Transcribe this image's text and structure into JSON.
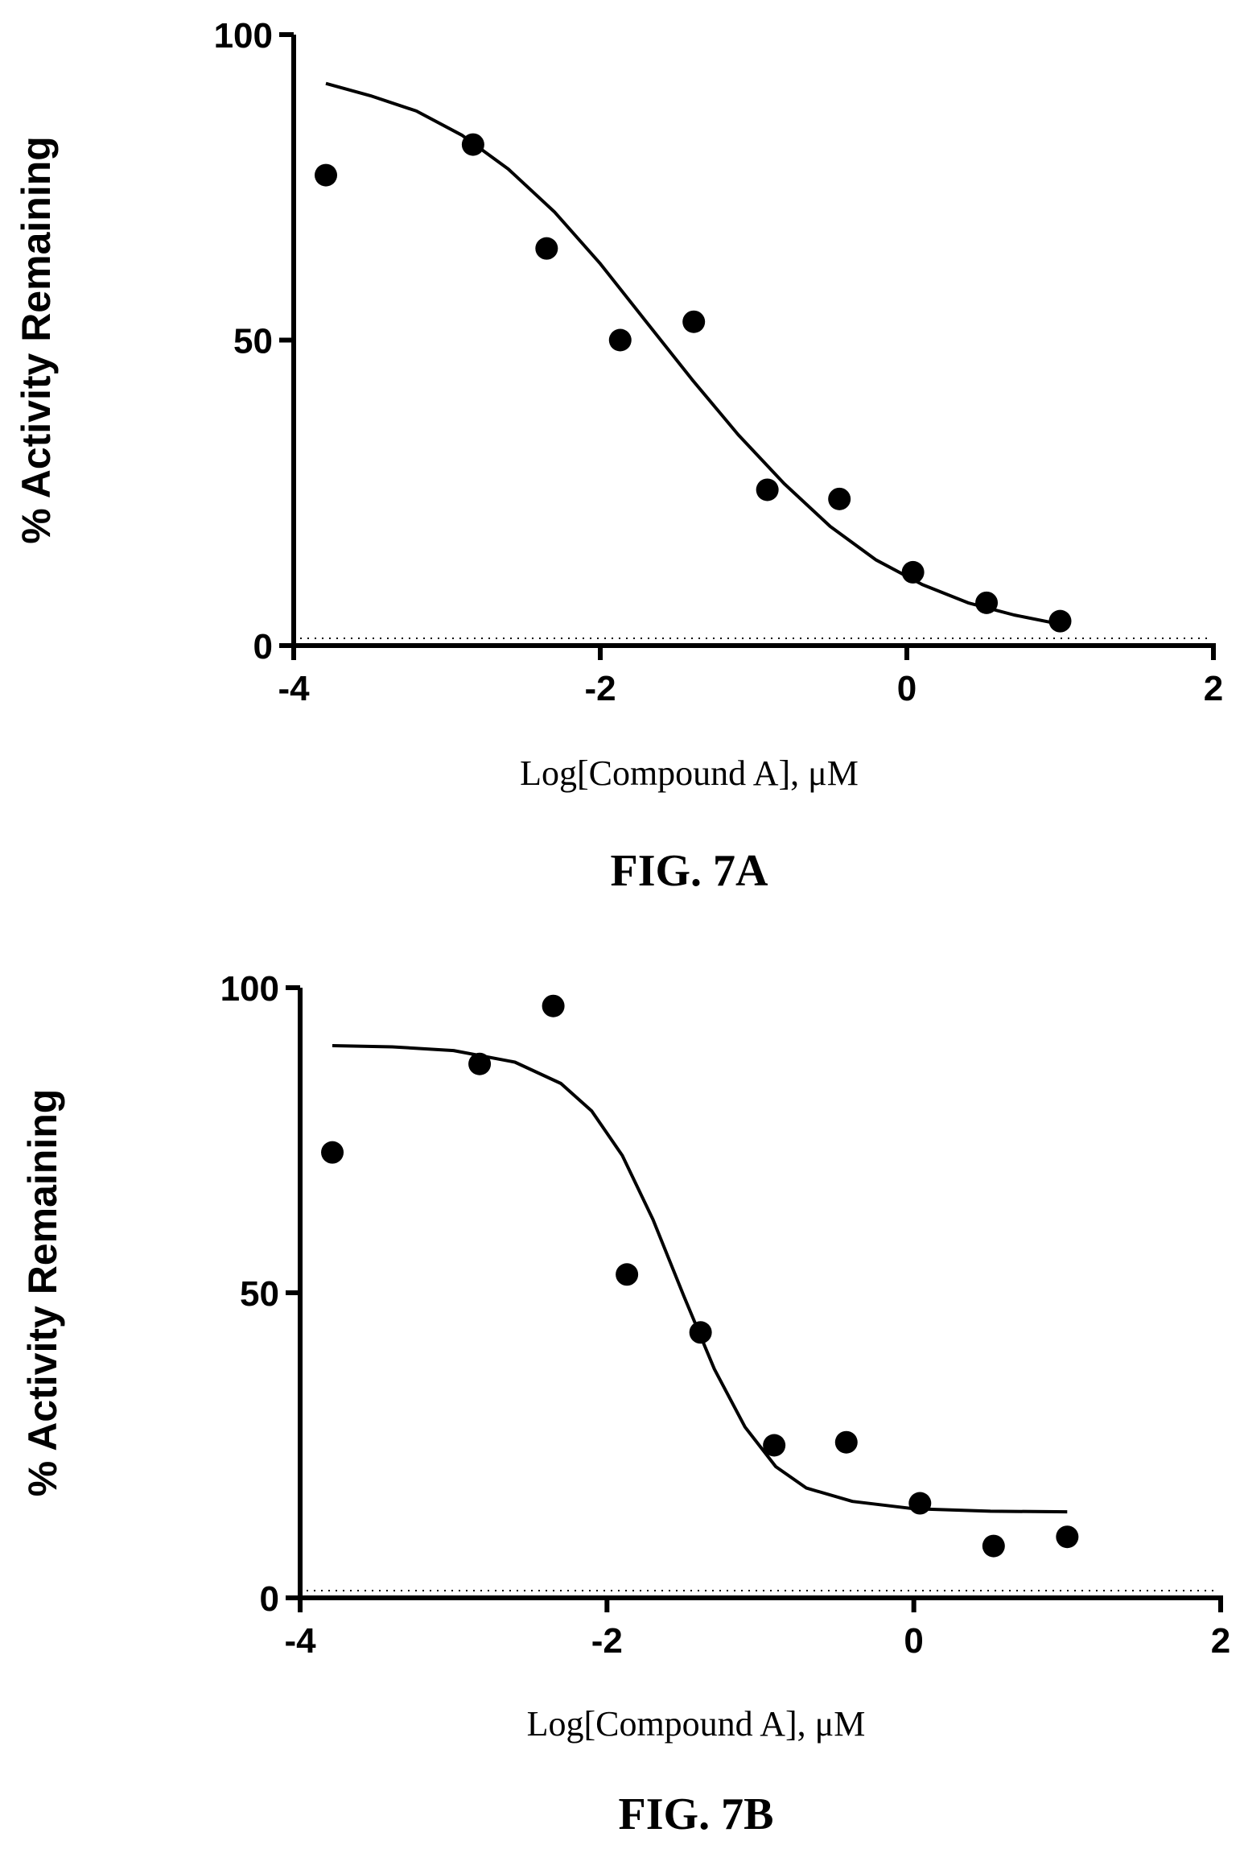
{
  "chart_data": [
    {
      "type": "scatter",
      "caption": "FIG. 7A",
      "xlabel": "Log[Compound A], μM",
      "ylabel": "% Activity Remaining",
      "xlim": [
        -4,
        2
      ],
      "ylim": [
        0,
        100
      ],
      "x_ticks": [
        -4,
        -2,
        0,
        2
      ],
      "y_ticks": [
        0,
        50,
        100
      ],
      "x_tick_labels": [
        "-4",
        "-2",
        "0",
        "2"
      ],
      "y_tick_labels": [
        "0",
        "50",
        "100"
      ],
      "grid": false,
      "series": [
        {
          "kind": "points",
          "x": [
            -3.79,
            -2.83,
            -2.35,
            -1.87,
            -1.39,
            -0.91,
            -0.44,
            0.04,
            0.52,
            1.0
          ],
          "y": [
            77,
            82,
            65,
            50,
            53,
            25.5,
            24,
            12,
            7,
            4
          ]
        },
        {
          "kind": "fit_curve",
          "x": [
            -3.79,
            -3.5,
            -3.2,
            -2.9,
            -2.6,
            -2.3,
            -2.0,
            -1.7,
            -1.4,
            -1.1,
            -0.8,
            -0.5,
            -0.2,
            0.1,
            0.4,
            0.7,
            1.0
          ],
          "y": [
            92,
            90,
            87.5,
            83.5,
            78,
            71,
            62.5,
            53,
            43.5,
            34.5,
            26.5,
            19.5,
            14,
            10,
            7,
            5,
            3.5
          ]
        }
      ]
    },
    {
      "type": "scatter",
      "caption": "FIG. 7B",
      "xlabel": "Log[Compound A], μM",
      "ylabel": "% Activity Remaining",
      "xlim": [
        -4,
        2
      ],
      "ylim": [
        0,
        100
      ],
      "x_ticks": [
        -4,
        -2,
        0,
        2
      ],
      "y_ticks": [
        0,
        50,
        100
      ],
      "x_tick_labels": [
        "-4",
        "-2",
        "0",
        "2"
      ],
      "y_tick_labels": [
        "0",
        "50",
        "100"
      ],
      "grid": false,
      "series": [
        {
          "kind": "points",
          "x": [
            -3.79,
            -2.83,
            -2.35,
            -1.87,
            -1.39,
            -0.91,
            -0.44,
            0.04,
            0.52,
            1.0
          ],
          "y": [
            73,
            87.5,
            97,
            53,
            43.5,
            25,
            25.5,
            15.5,
            8.5,
            10
          ]
        },
        {
          "kind": "fit_curve",
          "x": [
            -3.79,
            -3.4,
            -3.0,
            -2.6,
            -2.3,
            -2.1,
            -1.9,
            -1.7,
            -1.5,
            -1.3,
            -1.1,
            -0.9,
            -0.7,
            -0.4,
            0.0,
            0.5,
            1.0
          ],
          "y": [
            90.5,
            90.3,
            89.7,
            87.8,
            84.3,
            79.8,
            72.5,
            62,
            49.5,
            37.5,
            28,
            21.5,
            18,
            15.8,
            14.6,
            14.2,
            14.1
          ]
        }
      ]
    }
  ]
}
